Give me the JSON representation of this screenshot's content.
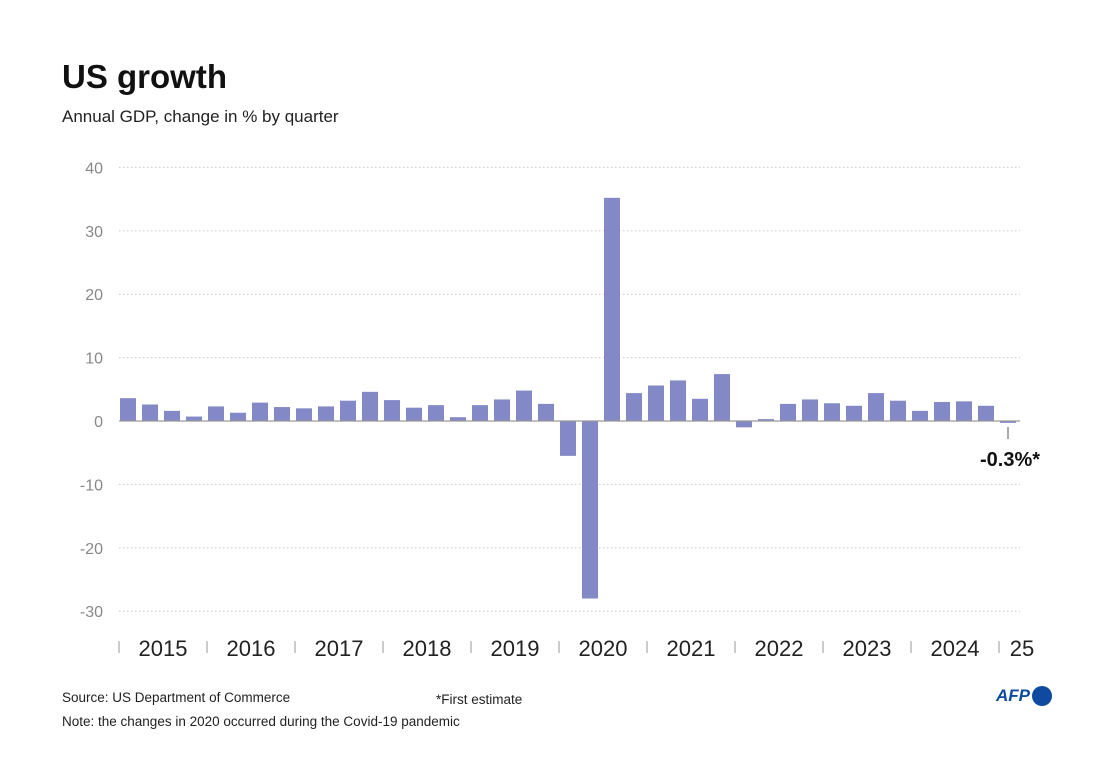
{
  "title": "US growth",
  "subtitle": "Annual GDP, change in % by quarter",
  "source": "Source: US Department of Commerce",
  "note": "Note: the changes in 2020 occurred during the Covid-19 pandemic",
  "footnote": "*First estimate",
  "logo": "AFP",
  "colors": {
    "bar": "#8389c6",
    "grid": "#c8c8c8",
    "zero": "#999999"
  },
  "chart_data": {
    "type": "bar",
    "title": "US growth",
    "subtitle": "Annual GDP, change in % by quarter",
    "ylim": [
      -30,
      40
    ],
    "yticks": [
      40,
      30,
      20,
      10,
      0,
      -10,
      -20,
      -30
    ],
    "grid": true,
    "year_labels": [
      "2015",
      "2016",
      "2017",
      "2018",
      "2019",
      "2020",
      "2021",
      "2022",
      "2023",
      "2024",
      "25"
    ],
    "categories": [
      "2015Q1",
      "2015Q2",
      "2015Q3",
      "2015Q4",
      "2016Q1",
      "2016Q2",
      "2016Q3",
      "2016Q4",
      "2017Q1",
      "2017Q2",
      "2017Q3",
      "2017Q4",
      "2018Q1",
      "2018Q2",
      "2018Q3",
      "2018Q4",
      "2019Q1",
      "2019Q2",
      "2019Q3",
      "2019Q4",
      "2020Q1",
      "2020Q2",
      "2020Q3",
      "2020Q4",
      "2021Q1",
      "2021Q2",
      "2021Q3",
      "2021Q4",
      "2022Q1",
      "2022Q2",
      "2022Q3",
      "2022Q4",
      "2023Q1",
      "2023Q2",
      "2023Q3",
      "2023Q4",
      "2024Q1",
      "2024Q2",
      "2024Q3",
      "2024Q4",
      "2025Q1"
    ],
    "values": [
      3.6,
      2.6,
      1.6,
      0.7,
      2.3,
      1.3,
      2.9,
      2.2,
      2.0,
      2.3,
      3.2,
      4.6,
      3.3,
      2.1,
      2.5,
      0.6,
      2.5,
      3.4,
      4.8,
      2.7,
      -5.5,
      -28.0,
      35.2,
      4.4,
      5.6,
      6.4,
      3.5,
      7.4,
      -1.0,
      0.3,
      2.7,
      3.4,
      2.8,
      2.4,
      4.4,
      3.2,
      1.6,
      3.0,
      3.1,
      2.4,
      -0.3
    ],
    "annotation": "-0.3%*"
  }
}
